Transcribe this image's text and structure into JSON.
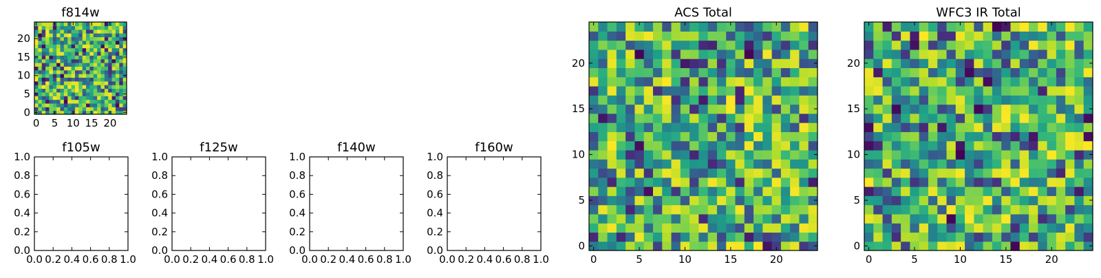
{
  "chart_data": [
    {
      "type": "heatmap",
      "title": "f814w",
      "colormap": "viridis",
      "size": 25,
      "x_range": [
        -0.5,
        24.5
      ],
      "y_range": [
        -0.5,
        24.5
      ],
      "x_ticks": [
        0,
        5,
        10,
        15,
        20
      ],
      "y_ticks": [
        0,
        5,
        10,
        15,
        20
      ],
      "value_range": [
        0,
        1
      ],
      "values": "random 25x25 noise field, values skewed high (mostly green-yellow)"
    },
    {
      "type": "empty",
      "title": "f105w",
      "xlim": [
        0,
        1
      ],
      "ylim": [
        0,
        1
      ],
      "x_ticks": [
        "0.0",
        "0.2",
        "0.4",
        "0.6",
        "0.8",
        "1.0"
      ],
      "y_ticks": [
        "0.0",
        "0.2",
        "0.4",
        "0.6",
        "0.8",
        "1.0"
      ]
    },
    {
      "type": "empty",
      "title": "f125w",
      "xlim": [
        0,
        1
      ],
      "ylim": [
        0,
        1
      ],
      "x_ticks": [
        "0.0",
        "0.2",
        "0.4",
        "0.6",
        "0.8",
        "1.0"
      ],
      "y_ticks": [
        "0.0",
        "0.2",
        "0.4",
        "0.6",
        "0.8",
        "1.0"
      ]
    },
    {
      "type": "empty",
      "title": "f140w",
      "xlim": [
        0,
        1
      ],
      "ylim": [
        0,
        1
      ],
      "x_ticks": [
        "0.0",
        "0.2",
        "0.4",
        "0.6",
        "0.8",
        "1.0"
      ],
      "y_ticks": [
        "0.0",
        "0.2",
        "0.4",
        "0.6",
        "0.8",
        "1.0"
      ]
    },
    {
      "type": "empty",
      "title": "f160w",
      "xlim": [
        0,
        1
      ],
      "ylim": [
        0,
        1
      ],
      "x_ticks": [
        "0.0",
        "0.2",
        "0.4",
        "0.6",
        "0.8",
        "1.0"
      ],
      "y_ticks": [
        "0.0",
        "0.2",
        "0.4",
        "0.6",
        "0.8",
        "1.0"
      ]
    },
    {
      "type": "heatmap",
      "title": "ACS Total",
      "colormap": "viridis",
      "size": 25,
      "x_range": [
        -0.5,
        24.5
      ],
      "y_range": [
        -0.5,
        24.5
      ],
      "x_ticks": [
        0,
        5,
        10,
        15,
        20
      ],
      "y_ticks": [
        0,
        5,
        10,
        15,
        20
      ],
      "value_range": [
        0,
        1
      ],
      "values": "random 25x25 noise field, values skewed high (mostly green-yellow)"
    },
    {
      "type": "heatmap",
      "title": "WFC3 IR Total",
      "colormap": "viridis",
      "size": 25,
      "x_range": [
        -0.5,
        24.5
      ],
      "y_range": [
        -0.5,
        24.5
      ],
      "x_ticks": [
        0,
        5,
        10,
        15,
        20
      ],
      "y_ticks": [
        0,
        5,
        10,
        15,
        20
      ],
      "value_range": [
        0,
        1
      ],
      "values": "random 25x25 noise field, values skewed high (mostly green-yellow)"
    }
  ]
}
